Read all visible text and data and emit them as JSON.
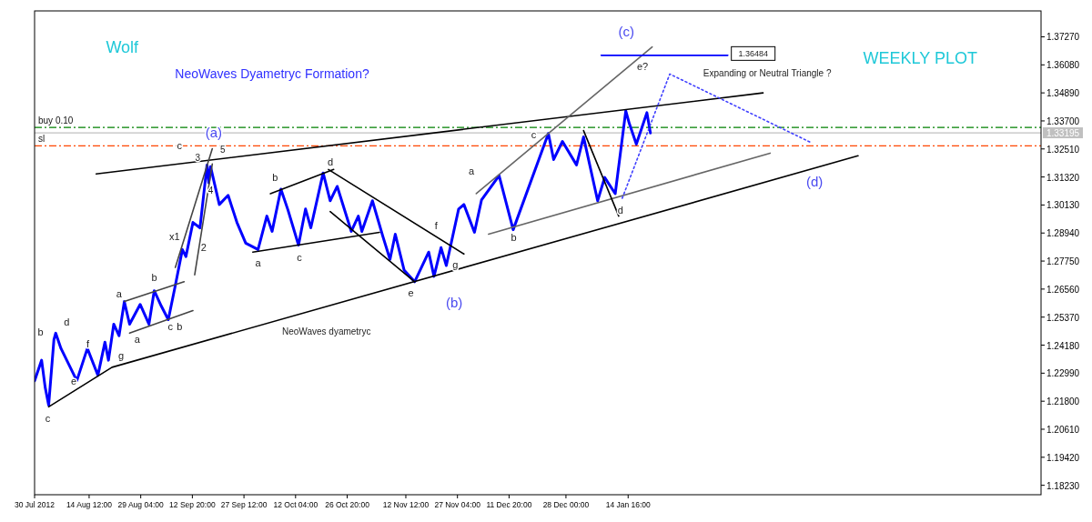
{
  "chart_data": {
    "type": "line",
    "xlim": [
      "2012-07-30T00:00",
      "2013-05-12T00:00"
    ],
    "ylim": [
      1.1783,
      1.3837
    ],
    "xticks": [
      {
        "value": "2012-07-30T00:00",
        "label": "30 Jul 2012"
      },
      {
        "value": "2012-08-14T12:00",
        "label": "14 Aug 12:00"
      },
      {
        "value": "2012-08-29T04:00",
        "label": "29 Aug 04:00"
      },
      {
        "value": "2012-09-12T20:00",
        "label": "12 Sep 20:00"
      },
      {
        "value": "2012-09-27T12:00",
        "label": "27 Sep 12:00"
      },
      {
        "value": "2012-10-12T04:00",
        "label": "12 Oct 04:00"
      },
      {
        "value": "2012-10-26T20:00",
        "label": "26 Oct 20:00"
      },
      {
        "value": "2012-11-12T12:00",
        "label": "12 Nov 12:00"
      },
      {
        "value": "2012-11-27T04:00",
        "label": "27 Nov 04:00"
      },
      {
        "value": "2012-12-11T20:00",
        "label": "11 Dec 20:00"
      },
      {
        "value": "2012-12-28T00:00",
        "label": "28 Dec 00:00"
      },
      {
        "value": "2013-01-14T16:00",
        "label": "14 Jan 16:00"
      }
    ],
    "yticks": [
      {
        "value": 1.1823,
        "label": "1.18230"
      },
      {
        "value": 1.1942,
        "label": "1.19420"
      },
      {
        "value": 1.2061,
        "label": "1.20610"
      },
      {
        "value": 1.218,
        "label": "1.21800"
      },
      {
        "value": 1.2299,
        "label": "1.22990"
      },
      {
        "value": 1.2418,
        "label": "1.24180"
      },
      {
        "value": 1.2537,
        "label": "1.25370"
      },
      {
        "value": 1.2656,
        "label": "1.26560"
      },
      {
        "value": 1.2775,
        "label": "1.27750"
      },
      {
        "value": 1.2894,
        "label": "1.28940"
      },
      {
        "value": 1.3013,
        "label": "1.30130"
      },
      {
        "value": 1.3132,
        "label": "1.31320"
      },
      {
        "value": 1.3251,
        "label": "1.32510"
      },
      {
        "value": 1.337,
        "label": "1.33700"
      },
      {
        "value": 1.3489,
        "label": "1.34890"
      },
      {
        "value": 1.3608,
        "label": "1.36080"
      },
      {
        "value": 1.3727,
        "label": "1.37270"
      }
    ],
    "grid": false,
    "series": [
      {
        "color": "#0000ff",
        "x": [
          "2012-07-30T00:00",
          "2012-08-01T00:00",
          "2012-08-02T00:00",
          "2012-08-03T00:00",
          "2012-08-04T12:00",
          "2012-08-05T00:00",
          "2012-08-06T12:00",
          "2012-08-11T00:00",
          "2012-08-14T00:00",
          "2012-08-17T00:00",
          "2012-08-19T00:00",
          "2012-08-20T00:00",
          "2012-08-21T12:00",
          "2012-08-23T00:00",
          "2012-08-24T12:00",
          "2012-08-26T00:00",
          "2012-08-29T00:00",
          "2012-08-31T12:00",
          "2012-09-02T00:00",
          "2012-09-04T00:00",
          "2012-09-06T00:00",
          "2012-09-08T00:00",
          "2012-09-10T00:00",
          "2012-09-11T00:00",
          "2012-09-13T00:00",
          "2012-09-15T00:00",
          "2012-09-17T00:00",
          "2012-09-17T12:00",
          "2012-09-18T00:00",
          "2012-09-20T12:00",
          "2012-09-23T00:00",
          "2012-09-25T12:00",
          "2012-09-28T00:00",
          "2012-10-01T12:00",
          "2012-10-04T00:00",
          "2012-10-05T12:00",
          "2012-10-08T00:00",
          "2012-10-10T00:00",
          "2012-10-13T00:00",
          "2012-10-15T00:00",
          "2012-10-16T12:00",
          "2012-10-20T00:00",
          "2012-10-22T00:00",
          "2012-10-24T00:00",
          "2012-10-28T00:00",
          "2012-10-30T00:00",
          "2012-10-31T00:00",
          "2012-11-03T00:00",
          "2012-11-06T00:00",
          "2012-11-08T00:00",
          "2012-11-09T12:00",
          "2012-11-12T00:00",
          "2012-11-15T00:00",
          "2012-11-19T00:00",
          "2012-11-20T12:00",
          "2012-11-22T12:00",
          "2012-11-24T00:00",
          "2012-11-27T12:00",
          "2012-11-29T00:00",
          "2012-12-02T00:00",
          "2012-12-04T00:00",
          "2012-12-09T00:00",
          "2012-12-13T00:00",
          "2012-12-23T00:00",
          "2012-12-24T12:00",
          "2012-12-27T00:00",
          "2012-12-31T00:00",
          "2013-01-02T00:00",
          "2013-01-06T00:00",
          "2013-01-08T00:00",
          "2013-01-11T00:00",
          "2013-01-14T00:00",
          "2013-01-15T00:00",
          "2013-01-17T00:00",
          "2013-01-20T00:00",
          "2013-01-21T00:00"
        ],
        "values": [
          1.2267,
          1.2354,
          1.224,
          1.2163,
          1.2442,
          1.2469,
          1.2404,
          1.2267,
          1.2404,
          1.229,
          1.2431,
          1.2354,
          1.2507,
          1.2458,
          1.2603,
          1.2507,
          1.2591,
          1.2507,
          1.2649,
          1.2584,
          1.2526,
          1.2672,
          1.2824,
          1.2794,
          1.2939,
          1.2916,
          1.3183,
          1.3107,
          1.3176,
          1.3015,
          1.3054,
          1.2939,
          1.2851,
          1.2824,
          1.2966,
          1.2901,
          1.308,
          1.2992,
          1.2843,
          1.2996,
          1.2916,
          1.3149,
          1.3031,
          1.3092,
          1.2901,
          1.2966,
          1.2901,
          1.3031,
          1.2878,
          1.2782,
          1.2889,
          1.2737,
          1.2687,
          1.2813,
          1.271,
          1.2832,
          1.2756,
          1.2996,
          1.3015,
          1.2897,
          1.3034,
          1.3138,
          1.2908,
          1.3317,
          1.3206,
          1.3283,
          1.3183,
          1.3302,
          1.3031,
          1.313,
          1.3061,
          1.3413,
          1.3359,
          1.3271,
          1.3405,
          1.3319
        ]
      },
      {
        "type": "line",
        "color": "#000000",
        "x": [
          "2012-08-16T12:00",
          "2013-02-22T00:00"
        ],
        "values": [
          1.3145,
          1.3489
        ]
      },
      {
        "type": "line",
        "color": "#000000",
        "x": [
          "2012-08-03T00:00",
          "2012-08-21T00:00",
          "2013-03-21T00:00"
        ],
        "values": [
          1.2156,
          1.2324,
          1.3222
        ]
      },
      {
        "type": "line",
        "color": "#666666",
        "x": [
          "2012-12-06T00:00",
          "2013-02-24T00:00"
        ],
        "values": [
          1.2889,
          1.3233
        ]
      },
      {
        "type": "line",
        "color": "#666666",
        "x": [
          "2012-12-02T12:00",
          "2013-01-21T12:00"
        ],
        "values": [
          1.3061,
          1.3684
        ]
      },
      {
        "type": "line",
        "color": "#0000ff",
        "x": [
          "2013-01-07T00:00",
          "2013-02-12T00:00"
        ],
        "values": [
          1.36484,
          1.36484
        ]
      },
      {
        "type": "line",
        "color": "#4040ff",
        "line_style": "dotted",
        "x": [
          "2013-01-13T00:00",
          "2013-01-26T12:00",
          "2013-03-07T12:00"
        ],
        "values": [
          1.3042,
          1.3569,
          1.3279
        ]
      },
      {
        "type": "line",
        "color": "#000000",
        "x": [
          "2012-10-21T12:00",
          "2012-11-29T00:00"
        ],
        "values": [
          1.3164,
          1.2805
        ]
      },
      {
        "type": "line",
        "color": "#000000",
        "x": [
          "2012-10-22T00:00",
          "2012-11-15T00:00"
        ],
        "values": [
          1.2985,
          1.2687
        ]
      },
      {
        "type": "line",
        "color": "#000000",
        "x": [
          "2012-09-30T00:00",
          "2012-11-05T00:00"
        ],
        "values": [
          1.2813,
          1.2897
        ]
      },
      {
        "type": "line",
        "color": "#000000",
        "x": [
          "2012-10-05T00:00",
          "2012-10-23T00:00"
        ],
        "values": [
          1.3061,
          1.3164
        ]
      },
      {
        "type": "line",
        "color": "#444444",
        "x": [
          "2012-08-24T12:00",
          "2012-09-10T12:00"
        ],
        "values": [
          1.2603,
          1.2687
        ]
      },
      {
        "type": "line",
        "color": "#444444",
        "x": [
          "2012-08-26T00:00",
          "2012-09-13T00:00"
        ],
        "values": [
          1.2469,
          1.2565
        ]
      },
      {
        "type": "line",
        "color": "#444444",
        "x": [
          "2012-09-08T00:00",
          "2012-09-18T12:00"
        ],
        "values": [
          1.2748,
          1.3252
        ]
      },
      {
        "type": "line",
        "color": "#444444",
        "x": [
          "2012-09-13T12:00",
          "2012-09-18T12:00"
        ],
        "values": [
          1.2717,
          1.3187
        ]
      },
      {
        "type": "line",
        "color": "#000000",
        "x": [
          "2013-01-02T00:00",
          "2013-01-12T00:00"
        ],
        "values": [
          1.3329,
          1.2966
        ]
      }
    ],
    "ref_lines": [
      {
        "axis": "y",
        "value": 1.3342,
        "label": "buy 0.10",
        "color": "#008000",
        "line_style": "dashed"
      },
      {
        "axis": "y",
        "value": 1.3264,
        "label": "sl",
        "color": "#ff4500",
        "line_style": "dashed"
      },
      {
        "axis": "y",
        "value": 1.33195,
        "label": "1.33195",
        "color": "#c0c0c0",
        "line_style": "solid"
      }
    ],
    "annotations": [
      "Wolf",
      "NeoWaves Dyametryc Formation?",
      "WEEKLY PLOT",
      "Expanding or Neutral Triangle ?",
      "NeoWaves dyametryc",
      "b",
      "d",
      "c",
      "e",
      "f",
      "g",
      "a",
      "b",
      "a",
      "c",
      "b",
      "x1",
      "2",
      "3",
      "4",
      "5",
      "c",
      "(a)",
      "b",
      "a",
      "c",
      "d",
      "f",
      "g",
      "e",
      "(b)",
      "a",
      "b",
      "c",
      "d",
      "e?",
      "(c)",
      "(d)",
      "1.36484"
    ]
  }
}
